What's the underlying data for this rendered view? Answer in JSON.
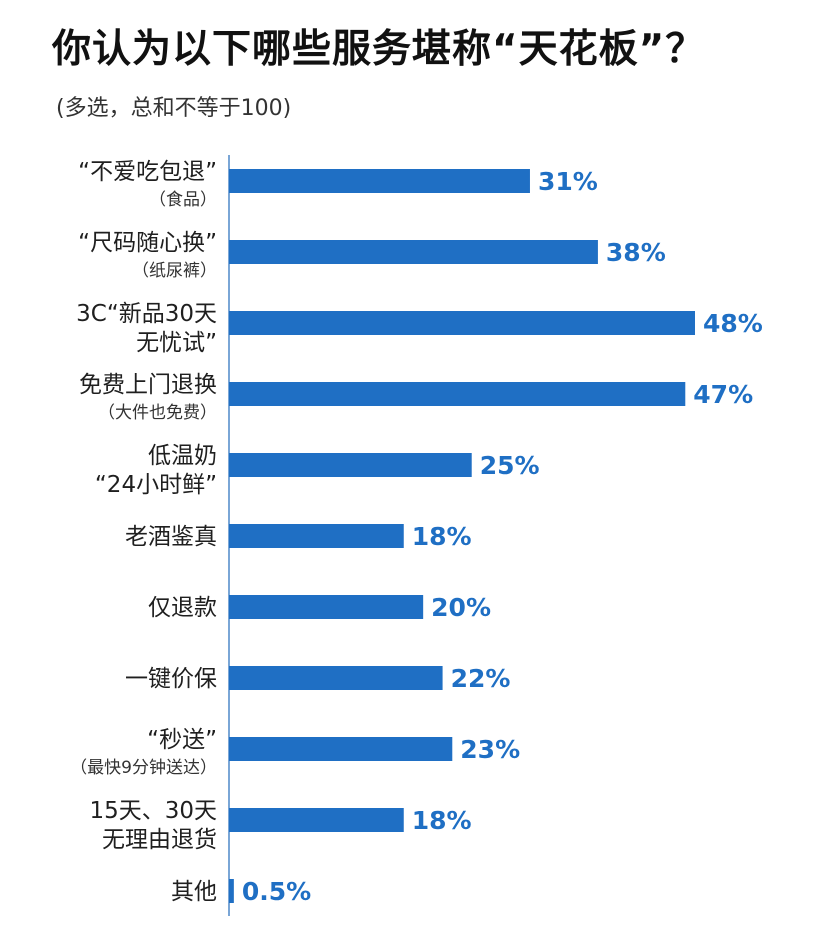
{
  "title": "你认为以下哪些服务堪称“天花板”？",
  "subtitle": "(多选，总和不等于100)",
  "chart_data": {
    "type": "bar",
    "orientation": "horizontal",
    "title": "你认为以下哪些服务堪称“天花板”？",
    "subtitle": "(多选，总和不等于100)",
    "unit": "%",
    "bar_color": "#1f6fc4",
    "categories": [
      {
        "lines": [
          "“不爱吃包退”",
          "（食品）"
        ],
        "value": 31,
        "label": "31%"
      },
      {
        "lines": [
          "“尺码随心换”",
          "（纸尿裤）"
        ],
        "value": 38,
        "label": "38%"
      },
      {
        "lines": [
          "3C“新品30天",
          "无忧试”"
        ],
        "value": 48,
        "label": "48%"
      },
      {
        "lines": [
          "免费上门退换",
          "（大件也免费）"
        ],
        "value": 47,
        "label": "47%"
      },
      {
        "lines": [
          "低温奶",
          "“24小时鲜”"
        ],
        "value": 25,
        "label": "25%"
      },
      {
        "lines": [
          "老酒鉴真"
        ],
        "value": 18,
        "label": "18%"
      },
      {
        "lines": [
          "仅退款"
        ],
        "value": 20,
        "label": "20%"
      },
      {
        "lines": [
          "一键价保"
        ],
        "value": 22,
        "label": "22%"
      },
      {
        "lines": [
          "“秒送”",
          "（最快9分钟送达）"
        ],
        "value": 23,
        "label": "23%"
      },
      {
        "lines": [
          "15天、30天",
          "无理由退货"
        ],
        "value": 18,
        "label": "18%"
      },
      {
        "lines": [
          "其他"
        ],
        "value": 0.5,
        "label": "0.5%"
      }
    ],
    "xlim": [
      0,
      48
    ],
    "grid": false,
    "legend": "none"
  }
}
